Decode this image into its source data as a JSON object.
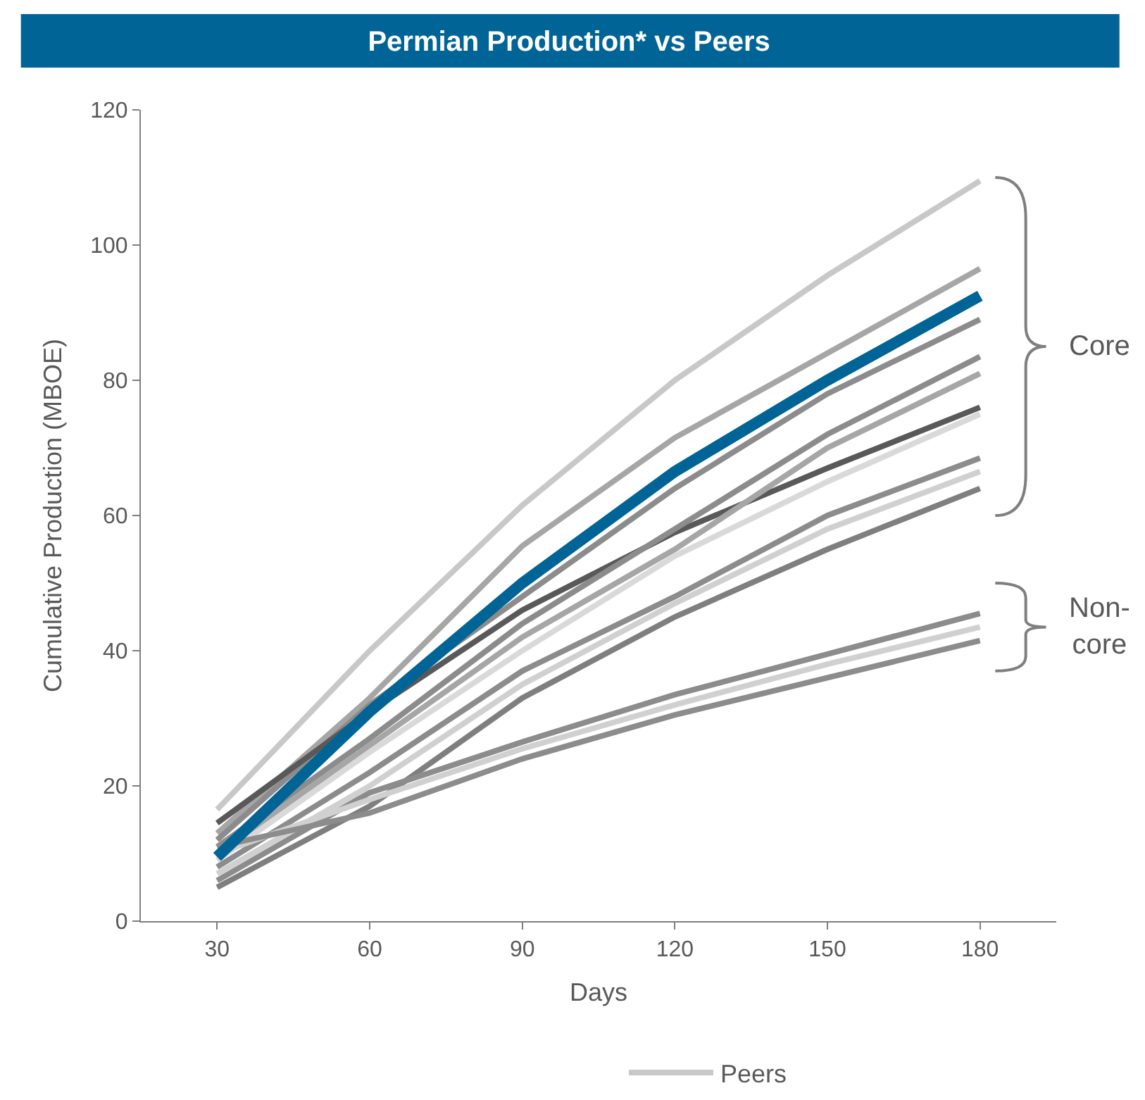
{
  "chart_data": {
    "type": "line",
    "title": "Permian Production* vs Peers",
    "xlabel": "Days",
    "ylabel": "Cumulative Production (MBOE)",
    "x": [
      30,
      60,
      90,
      120,
      150,
      180
    ],
    "xlim": [
      15,
      195
    ],
    "xticks": [
      30,
      60,
      90,
      120,
      150,
      180
    ],
    "ylim": [
      0,
      120
    ],
    "yticks": [
      0,
      20,
      40,
      60,
      80,
      100,
      120
    ],
    "legend": "bottom",
    "marker": "none",
    "line_style": "solid",
    "annotations": [
      "Core",
      "Non-core"
    ],
    "series": [
      {
        "name": "Peers",
        "color": "#c8c8c8",
        "values": [
          16.5,
          40,
          61.5,
          80,
          95.5,
          109.5
        ]
      },
      {
        "color": "#a6a6a6",
        "values": [
          13,
          33,
          55.5,
          71.5,
          84,
          96.5
        ]
      },
      {
        "color": "#8c8c8c",
        "values": [
          12,
          32,
          48,
          64,
          78,
          89
        ]
      },
      {
        "color": "#595959",
        "values": [
          14.5,
          31,
          46,
          57.5,
          67,
          76
        ]
      },
      {
        "color": "#8c8c8c",
        "values": [
          11,
          27,
          44,
          58,
          72,
          83.5
        ]
      },
      {
        "color": "#a6a6a6",
        "values": [
          10,
          26,
          42,
          55,
          70,
          81
        ]
      },
      {
        "color": "#d9d9d9",
        "values": [
          9,
          25,
          40,
          54,
          65,
          75
        ]
      },
      {
        "color": "#8c8c8c",
        "values": [
          8,
          22,
          37,
          48,
          60,
          68.5
        ]
      },
      {
        "color": "#d0d0d0",
        "values": [
          7,
          20,
          35,
          47,
          58,
          66.5
        ]
      },
      {
        "color": "#7f7f7f",
        "values": [
          5,
          17,
          33,
          45,
          55,
          64
        ]
      },
      {
        "color": "#8c8c8c",
        "values": [
          6,
          19,
          26.5,
          33.5,
          39.5,
          45.5
        ]
      },
      {
        "color": "#d0d0d0",
        "values": [
          10,
          18,
          25.5,
          32,
          38,
          43.5
        ]
      },
      {
        "color": "#8c8c8c",
        "values": [
          11,
          16,
          24,
          30.5,
          36,
          41.5
        ]
      },
      {
        "color": "#006496",
        "values": [
          9.5,
          31,
          50,
          66.5,
          80,
          92.5
        ]
      }
    ]
  }
}
